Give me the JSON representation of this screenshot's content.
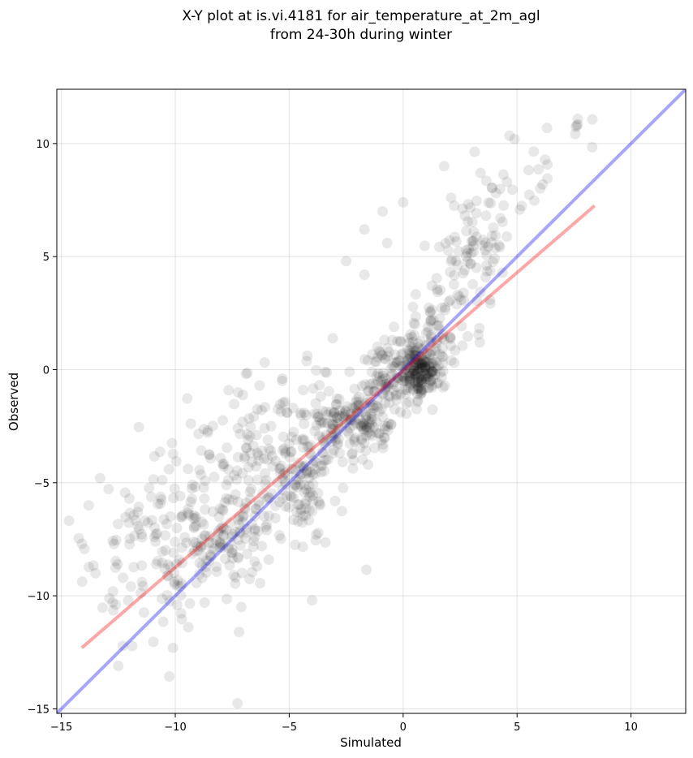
{
  "chart_data": {
    "type": "scatter",
    "title": "X-Y plot at is.vi.4181 for air_temperature_at_2m_agl",
    "subtitle": "from 24-30h during winter",
    "xlabel": "Simulated",
    "ylabel": "Observed",
    "xlim": [
      -15.2,
      12.4
    ],
    "ylim": [
      -15.2,
      12.4
    ],
    "xticks": [
      -15,
      -10,
      -5,
      0,
      5,
      10
    ],
    "yticks": [
      -15,
      -10,
      -5,
      0,
      5,
      10
    ],
    "xtick_labels": [
      "−15",
      "−10",
      "−5",
      "0",
      "5",
      "10"
    ],
    "ytick_labels": [
      "−15",
      "−10",
      "−5",
      "0",
      "5",
      "10"
    ],
    "grid": true,
    "point_color": "#000000",
    "point_alpha": 0.09,
    "lines": [
      {
        "role": "one-to-one",
        "color": "#0000ff",
        "x": [
          -15.2,
          12.4
        ],
        "y": [
          -15.2,
          12.4
        ]
      },
      {
        "role": "fit",
        "color": "#ff0000",
        "x": [
          -14.1,
          8.4
        ],
        "y": [
          -12.3,
          7.25
        ]
      }
    ],
    "clusters": [
      {
        "cx": -12.0,
        "cy": -8.5,
        "sx": 1.1,
        "sy": 2.0,
        "n": 55
      },
      {
        "cx": -10.2,
        "cy": -7.5,
        "sx": 0.9,
        "sy": 2.0,
        "n": 60
      },
      {
        "cx": -8.5,
        "cy": -5.8,
        "sx": 1.0,
        "sy": 2.2,
        "n": 90
      },
      {
        "cx": -7.5,
        "cy": -7.8,
        "sx": 0.6,
        "sy": 1.0,
        "n": 55
      },
      {
        "cx": -6.5,
        "cy": -4.5,
        "sx": 0.9,
        "sy": 1.8,
        "n": 90
      },
      {
        "cx": -4.5,
        "cy": -5.2,
        "sx": 0.7,
        "sy": 1.2,
        "n": 90
      },
      {
        "cx": -4.2,
        "cy": -2.5,
        "sx": 1.0,
        "sy": 1.6,
        "n": 70
      },
      {
        "cx": -2.8,
        "cy": -2.8,
        "sx": 0.8,
        "sy": 1.1,
        "n": 70
      },
      {
        "cx": -1.6,
        "cy": -2.4,
        "sx": 0.6,
        "sy": 0.7,
        "n": 70
      },
      {
        "cx": -0.5,
        "cy": -0.6,
        "sx": 0.8,
        "sy": 1.0,
        "n": 100
      },
      {
        "cx": 0.7,
        "cy": 0.0,
        "sx": 0.5,
        "sy": 0.6,
        "n": 170
      },
      {
        "cx": 1.3,
        "cy": 1.5,
        "sx": 0.6,
        "sy": 0.9,
        "n": 70
      },
      {
        "cx": 2.6,
        "cy": 4.2,
        "sx": 0.8,
        "sy": 1.2,
        "n": 55
      },
      {
        "cx": 3.7,
        "cy": 6.5,
        "sx": 0.8,
        "sy": 1.2,
        "n": 40
      },
      {
        "cx": 5.5,
        "cy": 8.8,
        "sx": 1.0,
        "sy": 1.0,
        "n": 18
      },
      {
        "cx": 7.5,
        "cy": 10.6,
        "sx": 0.5,
        "sy": 0.4,
        "n": 8
      }
    ],
    "outliers": [
      {
        "x": -14.1,
        "y": -7.7
      },
      {
        "x": -13.8,
        "y": -6.0
      },
      {
        "x": -13.5,
        "y": -9.0
      },
      {
        "x": -13.3,
        "y": -4.8
      },
      {
        "x": -7.2,
        "y": -11.6
      },
      {
        "x": -6.3,
        "y": -0.7
      },
      {
        "x": -5.3,
        "y": -0.4
      },
      {
        "x": -4.0,
        "y": -10.2
      },
      {
        "x": -2.5,
        "y": 4.8
      },
      {
        "x": -1.7,
        "y": 6.2
      },
      {
        "x": -1.7,
        "y": 4.2
      },
      {
        "x": -0.9,
        "y": 7.0
      },
      {
        "x": -0.7,
        "y": 5.6
      },
      {
        "x": 0.0,
        "y": 7.4
      },
      {
        "x": 1.8,
        "y": 9.0
      },
      {
        "x": 2.1,
        "y": 7.6
      },
      {
        "x": -12.5,
        "y": -13.1
      },
      {
        "x": -10.1,
        "y": -12.3
      }
    ]
  }
}
